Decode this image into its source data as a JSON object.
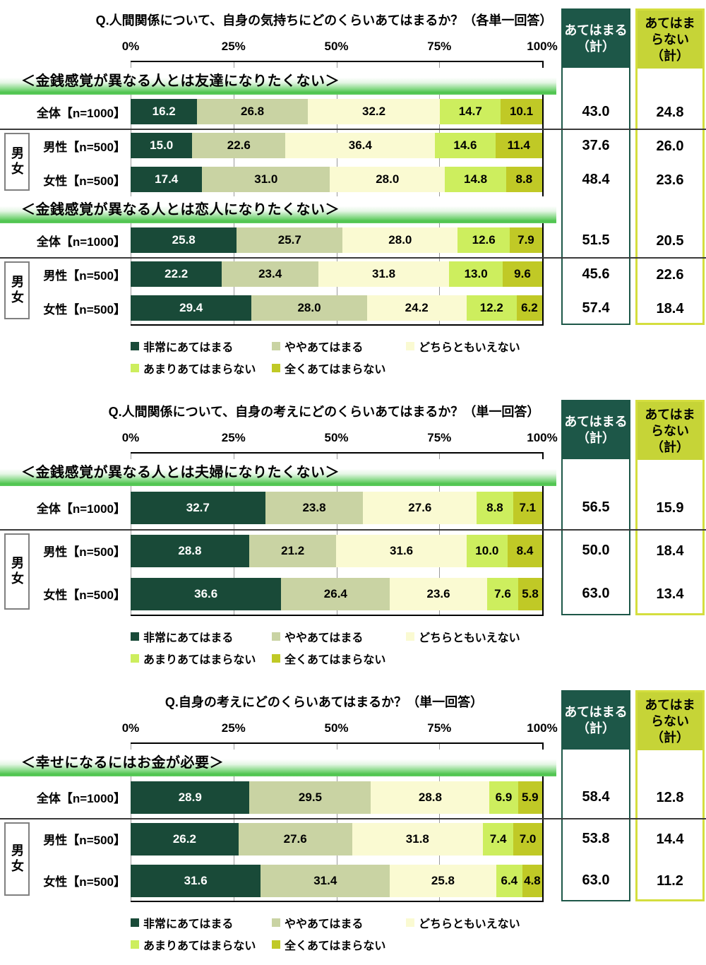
{
  "axis": {
    "ticks": [
      "0%",
      "25%",
      "50%",
      "75%",
      "100%"
    ]
  },
  "legend": [
    "非常にあてはまる",
    "ややあてはまる",
    "どちらともいえない",
    "あまりあてはまらない",
    "全くあてはまらない"
  ],
  "colors": {
    "segments": [
      "#194a38",
      "#c9d3a3",
      "#fafad2",
      "#cdee5e",
      "#c0c926"
    ],
    "agree_header_bg": "#1d5748",
    "disagree_header_bg": "#c6d437",
    "banner_green": "#4ec44e"
  },
  "columns": {
    "agree_label": "あてはまる（計）",
    "agree_lines": [
      "あてはまる",
      "（計）"
    ],
    "disagree_label": "あてはまらない（計）",
    "disagree_lines": [
      "あてはま",
      "らない",
      "（計）"
    ]
  },
  "gender_bracket": "男女",
  "chart_data": [
    {
      "type": "stacked-bar",
      "orientation": "horizontal",
      "x_range": [
        0,
        100
      ],
      "title": "Q.人間関係について、自身の気持ちにどのくらいあてはまるか？（各単一回答）",
      "segment_labels": [
        "非常にあてはまる",
        "ややあてはまる",
        "どちらともいえない",
        "あまりあてはまらない",
        "全くあてはまらない"
      ],
      "groups": [
        {
          "heading": "＜金銭感覚が異なる人とは友達になりたくない＞",
          "rows": [
            {
              "label": "全体【n=1000】",
              "values": [
                "16.2",
                "26.8",
                "32.2",
                "14.7",
                "10.1"
              ],
              "agree": "43.0",
              "disagree": "24.8"
            },
            {
              "label": "男性【n=500】",
              "values": [
                "15.0",
                "22.6",
                "36.4",
                "14.6",
                "11.4"
              ],
              "agree": "37.6",
              "disagree": "26.0"
            },
            {
              "label": "女性【n=500】",
              "values": [
                "17.4",
                "31.0",
                "28.0",
                "14.8",
                "8.8"
              ],
              "agree": "48.4",
              "disagree": "23.6"
            }
          ]
        },
        {
          "heading": "＜金銭感覚が異なる人とは恋人になりたくない＞",
          "rows": [
            {
              "label": "全体【n=1000】",
              "values": [
                "25.8",
                "25.7",
                "28.0",
                "12.6",
                "7.9"
              ],
              "agree": "51.5",
              "disagree": "20.5"
            },
            {
              "label": "男性【n=500】",
              "values": [
                "22.2",
                "23.4",
                "31.8",
                "13.0",
                "9.6"
              ],
              "agree": "45.6",
              "disagree": "22.6"
            },
            {
              "label": "女性【n=500】",
              "values": [
                "29.4",
                "28.0",
                "24.2",
                "12.2",
                "6.2"
              ],
              "agree": "57.4",
              "disagree": "18.4"
            }
          ]
        }
      ]
    },
    {
      "type": "stacked-bar",
      "orientation": "horizontal",
      "x_range": [
        0,
        100
      ],
      "title": "Q.人間関係について、自身の考えにどのくらいあてはまるか？（単一回答）",
      "segment_labels": [
        "非常にあてはまる",
        "ややあてはまる",
        "どちらともいえない",
        "あまりあてはまらない",
        "全くあてはまらない"
      ],
      "groups": [
        {
          "heading": "＜金銭感覚が異なる人とは夫婦になりたくない＞",
          "rows": [
            {
              "label": "全体【n=1000】",
              "values": [
                "32.7",
                "23.8",
                "27.6",
                "8.8",
                "7.1"
              ],
              "agree": "56.5",
              "disagree": "15.9"
            },
            {
              "label": "男性【n=500】",
              "values": [
                "28.8",
                "21.2",
                "31.6",
                "10.0",
                "8.4"
              ],
              "agree": "50.0",
              "disagree": "18.4"
            },
            {
              "label": "女性【n=500】",
              "values": [
                "36.6",
                "26.4",
                "23.6",
                "7.6",
                "5.8"
              ],
              "agree": "63.0",
              "disagree": "13.4"
            }
          ]
        }
      ]
    },
    {
      "type": "stacked-bar",
      "orientation": "horizontal",
      "x_range": [
        0,
        100
      ],
      "title": "Q.自身の考えにどのくらいあてはまるか？（単一回答）",
      "segment_labels": [
        "非常にあてはまる",
        "ややあてはまる",
        "どちらともいえない",
        "あまりあてはまらない",
        "全くあてはまらない"
      ],
      "groups": [
        {
          "heading": "＜幸せになるにはお金が必要＞",
          "rows": [
            {
              "label": "全体【n=1000】",
              "values": [
                "28.9",
                "29.5",
                "28.8",
                "6.9",
                "5.9"
              ],
              "agree": "58.4",
              "disagree": "12.8"
            },
            {
              "label": "男性【n=500】",
              "values": [
                "26.2",
                "27.6",
                "31.8",
                "7.4",
                "7.0"
              ],
              "agree": "53.8",
              "disagree": "14.4"
            },
            {
              "label": "女性【n=500】",
              "values": [
                "31.6",
                "31.4",
                "25.8",
                "6.4",
                "4.8"
              ],
              "agree": "63.0",
              "disagree": "11.2"
            }
          ]
        }
      ]
    }
  ]
}
